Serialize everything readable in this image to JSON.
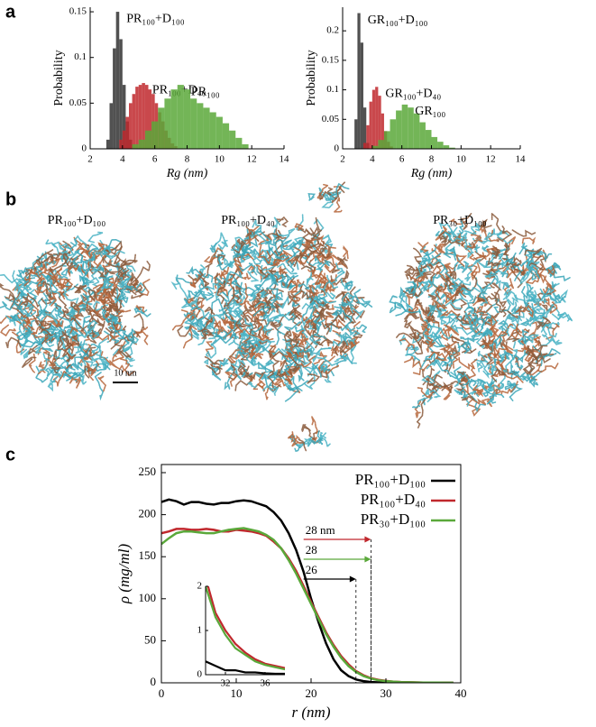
{
  "panel_labels": [
    "a",
    "b",
    "c"
  ],
  "panel_b": {
    "labels": [
      "PR₁₀₀+D₁₀₀",
      "PR₁₀₀+D₄₀",
      "PR₃₀+D₁₀₀"
    ],
    "scale_bar": "10 nm"
  },
  "chart_data": [
    {
      "type": "histogram",
      "xlabel": "Rg (nm)",
      "ylabel": "Probability",
      "xlim": [
        2,
        14
      ],
      "xticks": [
        2,
        4,
        6,
        8,
        10,
        12,
        14
      ],
      "ylim": [
        0,
        0.155
      ],
      "yticks": [
        0,
        0.05,
        0.1,
        0.15
      ],
      "series": [
        {
          "name": "PR₁₀₀+D₁₀₀",
          "color": "#333333",
          "bins": [
            3.0,
            3.2,
            3.4,
            3.6,
            3.8,
            4.0,
            4.2,
            4.4,
            4.6
          ],
          "values": [
            0.01,
            0.05,
            0.11,
            0.15,
            0.12,
            0.07,
            0.03,
            0.01
          ]
        },
        {
          "name": "PR₁₀₀+D₄₀",
          "color": "#c0282d",
          "bins": [
            3.8,
            4.0,
            4.2,
            4.4,
            4.6,
            4.8,
            5.0,
            5.2,
            5.4,
            5.6,
            5.8,
            6.0,
            6.2,
            6.4,
            6.6,
            6.8,
            7.0,
            7.2,
            7.4
          ],
          "values": [
            0.01,
            0.02,
            0.035,
            0.05,
            0.06,
            0.068,
            0.07,
            0.072,
            0.07,
            0.065,
            0.06,
            0.05,
            0.04,
            0.03,
            0.02,
            0.012,
            0.006,
            0.003
          ]
        },
        {
          "name": "PR₁₀₀",
          "color": "#5aa83a",
          "bins": [
            4.6,
            5.0,
            5.4,
            5.8,
            6.2,
            6.6,
            7.0,
            7.4,
            7.8,
            8.2,
            8.6,
            9.0,
            9.4,
            9.8,
            10.2,
            10.6,
            11.0,
            11.4,
            11.8
          ],
          "values": [
            0.005,
            0.01,
            0.02,
            0.03,
            0.045,
            0.055,
            0.065,
            0.07,
            0.065,
            0.055,
            0.05,
            0.045,
            0.04,
            0.035,
            0.028,
            0.02,
            0.012,
            0.005
          ]
        }
      ]
    },
    {
      "type": "histogram",
      "xlabel": "Rg (nm)",
      "ylabel": "Probability",
      "xlim": [
        2,
        14
      ],
      "xticks": [
        2,
        4,
        6,
        8,
        10,
        12,
        14
      ],
      "ylim": [
        0,
        0.24
      ],
      "yticks": [
        0,
        0.05,
        0.1,
        0.15,
        0.2
      ],
      "series": [
        {
          "name": "GR₁₀₀+D₁₀₀",
          "color": "#333333",
          "bins": [
            2.8,
            3.0,
            3.2,
            3.4,
            3.6,
            3.8
          ],
          "values": [
            0.05,
            0.23,
            0.18,
            0.07,
            0.01
          ]
        },
        {
          "name": "GR₁₀₀+D₄₀",
          "color": "#c0282d",
          "bins": [
            3.4,
            3.6,
            3.8,
            4.0,
            4.2,
            4.4,
            4.6,
            4.8,
            5.0,
            5.2,
            5.4
          ],
          "values": [
            0.01,
            0.04,
            0.08,
            0.1,
            0.105,
            0.09,
            0.06,
            0.03,
            0.012,
            0.004
          ]
        },
        {
          "name": "GR₁₀₀",
          "color": "#5aa83a",
          "bins": [
            4.0,
            4.4,
            4.8,
            5.2,
            5.6,
            6.0,
            6.4,
            6.8,
            7.2,
            7.6,
            8.0,
            8.4,
            8.8,
            9.2,
            9.6
          ],
          "values": [
            0.005,
            0.015,
            0.03,
            0.05,
            0.065,
            0.075,
            0.07,
            0.06,
            0.045,
            0.032,
            0.02,
            0.012,
            0.006,
            0.002
          ]
        }
      ]
    },
    {
      "type": "line",
      "xlabel": "r (nm)",
      "ylabel": "ρ (mg/ml)",
      "xlim": [
        0,
        40
      ],
      "xticks": [
        0,
        10,
        20,
        30,
        40
      ],
      "ylim": [
        0,
        250
      ],
      "yticks": [
        0,
        50,
        100,
        150,
        200,
        250
      ],
      "legend": "upper right",
      "x": [
        0,
        1,
        2,
        3,
        4,
        5,
        6,
        7,
        8,
        9,
        10,
        11,
        12,
        13,
        14,
        15,
        16,
        17,
        18,
        19,
        20,
        21,
        22,
        23,
        24,
        25,
        26,
        27,
        28,
        29,
        30,
        31,
        32,
        33,
        34,
        35,
        36,
        37,
        38,
        39
      ],
      "series": [
        {
          "name": "PR₁₀₀+D₁₀₀",
          "color": "#000000",
          "values": [
            215,
            218,
            216,
            212,
            215,
            215,
            213,
            212,
            214,
            214,
            216,
            217,
            216,
            213,
            210,
            203,
            193,
            178,
            158,
            132,
            100,
            72,
            47,
            28,
            15,
            8,
            4,
            2,
            1,
            0.5,
            0.3,
            0.2,
            0.1,
            0.1,
            0.05,
            0.05,
            0.03,
            0.02,
            0.02,
            0.01
          ]
        },
        {
          "name": "PR₁₀₀+D₄₀",
          "color": "#c0282d",
          "values": [
            178,
            180,
            183,
            183,
            182,
            182,
            183,
            182,
            180,
            180,
            182,
            181,
            180,
            178,
            175,
            168,
            160,
            148,
            133,
            115,
            96,
            78,
            60,
            45,
            32,
            22,
            14,
            9,
            5.5,
            3.5,
            2.2,
            1.4,
            1.0,
            0.7,
            0.5,
            0.35,
            0.25,
            0.2,
            0.15,
            0.1
          ]
        },
        {
          "name": "PR₃₀+D₁₀₀",
          "color": "#5aa83a",
          "values": [
            165,
            172,
            178,
            180,
            180,
            179,
            178,
            178,
            180,
            182,
            183,
            184,
            182,
            180,
            176,
            170,
            160,
            146,
            130,
            112,
            94,
            76,
            58,
            43,
            30,
            20,
            13,
            8,
            5,
            3,
            2.0,
            1.3,
            0.9,
            0.6,
            0.45,
            0.3,
            0.22,
            0.17,
            0.12,
            0.08
          ]
        }
      ],
      "annotations": [
        {
          "text": "28 nm",
          "value": 28,
          "color": "#c0282d"
        },
        {
          "text": "28",
          "value": 28,
          "color": "#5aa83a"
        },
        {
          "text": "26",
          "value": 26,
          "color": "#000000"
        }
      ],
      "inset": {
        "xlim": [
          30,
          38
        ],
        "xticks": [
          32,
          36
        ],
        "ylim": [
          0,
          2
        ],
        "yticks": [
          0,
          1,
          2
        ]
      }
    }
  ]
}
